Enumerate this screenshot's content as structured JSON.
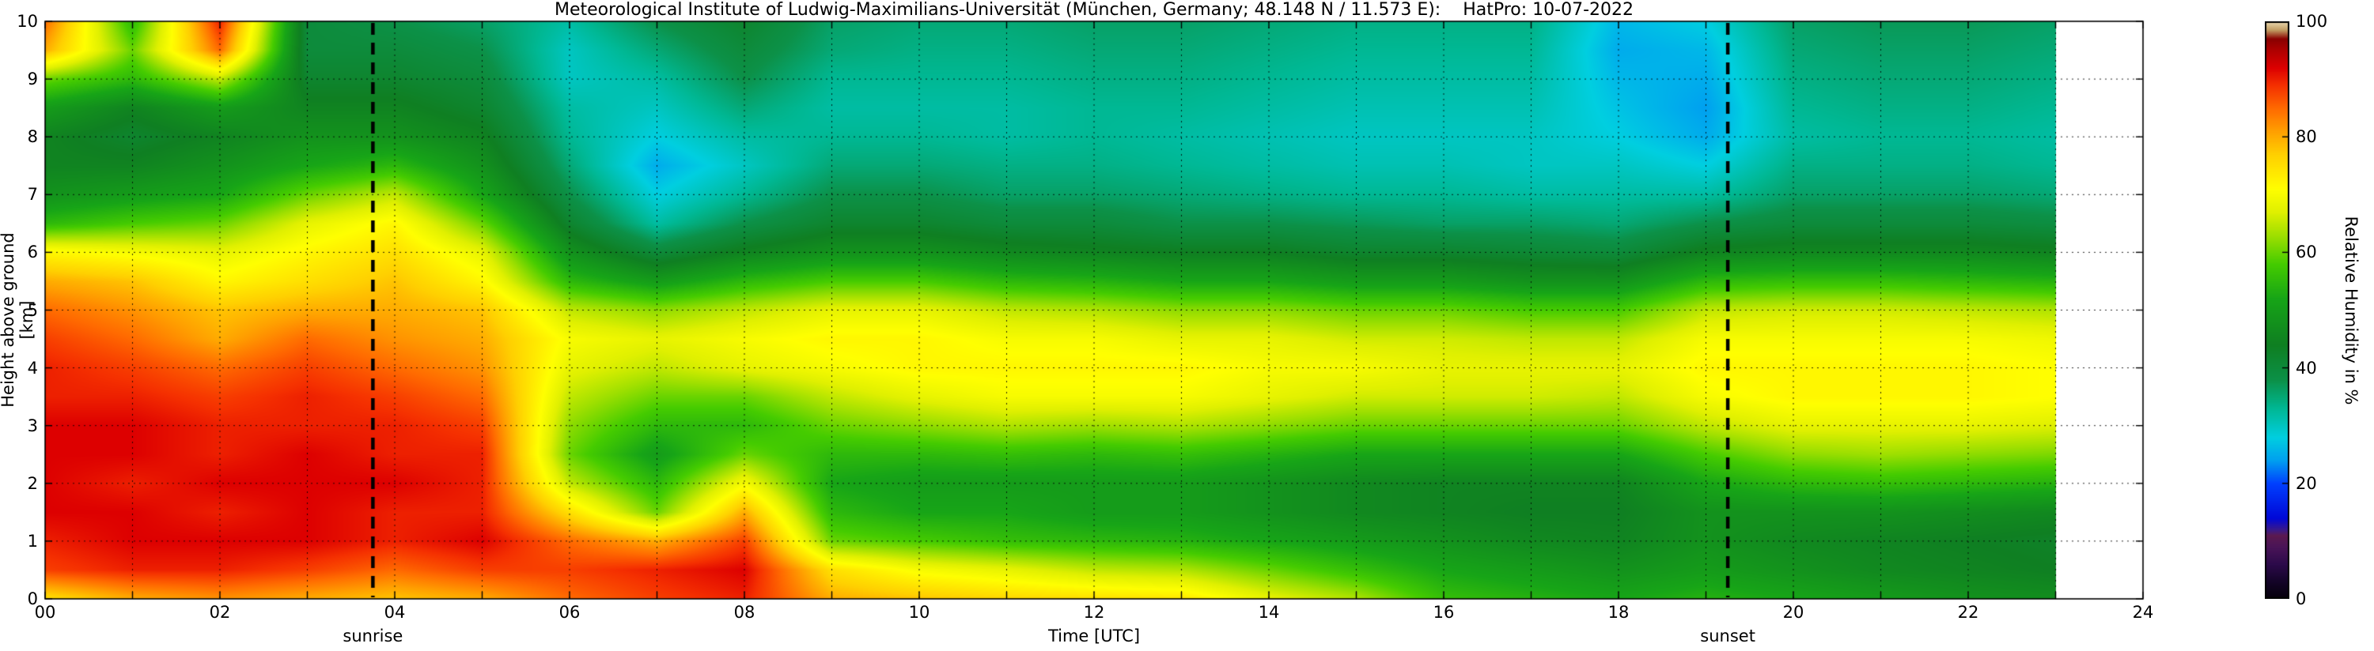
{
  "chart_data": {
    "type": "heatmap",
    "title": "Meteorological Institute of Ludwig-Maximilians-Universität (München, Germany; 48.148 N / 11.573 E):    HatPro: 10-07-2022",
    "xlabel": "Time [UTC]",
    "ylabel": "Height above ground [km]",
    "colorbar_label": "Relative Humidity in %",
    "xlim": [
      0,
      24
    ],
    "ylim": [
      0,
      10
    ],
    "value_lim": [
      0,
      100
    ],
    "grid": "dotted black, hourly vertical and 1-km horizontal",
    "legend_position": "colorbar-right",
    "data_end_time": 23,
    "x_ticks": [
      {
        "t": 0,
        "label": "00"
      },
      {
        "t": 2,
        "label": "02"
      },
      {
        "t": 4,
        "label": "04"
      },
      {
        "t": 6,
        "label": "06"
      },
      {
        "t": 8,
        "label": "08"
      },
      {
        "t": 10,
        "label": "10"
      },
      {
        "t": 12,
        "label": "12"
      },
      {
        "t": 14,
        "label": "14"
      },
      {
        "t": 16,
        "label": "16"
      },
      {
        "t": 18,
        "label": "18"
      },
      {
        "t": 20,
        "label": "20"
      },
      {
        "t": 22,
        "label": "22"
      },
      {
        "t": 24,
        "label": "24"
      }
    ],
    "y_ticks": [
      {
        "v": 0,
        "label": "0"
      },
      {
        "v": 1,
        "label": "1"
      },
      {
        "v": 2,
        "label": "2"
      },
      {
        "v": 3,
        "label": "3"
      },
      {
        "v": 4,
        "label": "4"
      },
      {
        "v": 5,
        "label": "5"
      },
      {
        "v": 6,
        "label": "6"
      },
      {
        "v": 7,
        "label": "7"
      },
      {
        "v": 8,
        "label": "8"
      },
      {
        "v": 9,
        "label": "9"
      },
      {
        "v": 10,
        "label": "10"
      }
    ],
    "colorbar_ticks": [
      {
        "v": 0,
        "label": "0"
      },
      {
        "v": 20,
        "label": "20"
      },
      {
        "v": 40,
        "label": "40"
      },
      {
        "v": 60,
        "label": "60"
      },
      {
        "v": 80,
        "label": "80"
      },
      {
        "v": 100,
        "label": "100"
      }
    ],
    "annotations": [
      {
        "label": "sunrise",
        "time": 3.75
      },
      {
        "label": "sunset",
        "time": 19.25
      }
    ],
    "colormap": [
      {
        "v": 0,
        "c": "#05000a"
      },
      {
        "v": 3,
        "c": "#140428"
      },
      {
        "v": 6,
        "c": "#2c0a4a"
      },
      {
        "v": 9,
        "c": "#4a1458"
      },
      {
        "v": 11,
        "c": "#5c1a50"
      },
      {
        "v": 12,
        "c": "#3a1a8a"
      },
      {
        "v": 14,
        "c": "#0008d8"
      },
      {
        "v": 20,
        "c": "#0040ff"
      },
      {
        "v": 24,
        "c": "#00a0f0"
      },
      {
        "v": 28,
        "c": "#00cfe0"
      },
      {
        "v": 33,
        "c": "#00b894"
      },
      {
        "v": 38,
        "c": "#0c9148"
      },
      {
        "v": 44,
        "c": "#0f7f22"
      },
      {
        "v": 52,
        "c": "#17a517"
      },
      {
        "v": 58,
        "c": "#45cc00"
      },
      {
        "v": 63,
        "c": "#a0e000"
      },
      {
        "v": 67,
        "c": "#e0f000"
      },
      {
        "v": 71,
        "c": "#ffff00"
      },
      {
        "v": 77,
        "c": "#ffd000"
      },
      {
        "v": 81,
        "c": "#ffa000"
      },
      {
        "v": 85,
        "c": "#ff6a00"
      },
      {
        "v": 89,
        "c": "#f53000"
      },
      {
        "v": 92,
        "c": "#dd0000"
      },
      {
        "v": 95,
        "c": "#b00000"
      },
      {
        "v": 97,
        "c": "#8a0000"
      },
      {
        "v": 98.5,
        "c": "#c09a60"
      },
      {
        "v": 100,
        "c": "#ead9b0"
      }
    ],
    "times": [
      0,
      1,
      2,
      3,
      4,
      5,
      6,
      7,
      8,
      9,
      10,
      11,
      12,
      13,
      14,
      15,
      16,
      17,
      18,
      19,
      20,
      21,
      22,
      23
    ],
    "heights": [
      0,
      0.5,
      1,
      1.5,
      2,
      2.5,
      3,
      3.5,
      4,
      4.5,
      5,
      5.5,
      6,
      6.5,
      7,
      7.5,
      8,
      8.5,
      9,
      9.5,
      10
    ],
    "rh": [
      [
        75,
        88,
        90,
        92,
        92,
        92,
        92,
        90,
        90,
        88,
        85,
        80,
        72,
        55,
        48,
        45,
        45,
        50,
        60,
        80,
        85
      ],
      [
        80,
        90,
        92,
        92,
        90,
        92,
        92,
        90,
        88,
        85,
        82,
        78,
        70,
        58,
        50,
        45,
        42,
        45,
        55,
        60,
        55
      ],
      [
        82,
        90,
        92,
        90,
        92,
        90,
        90,
        88,
        85,
        80,
        78,
        72,
        68,
        60,
        52,
        48,
        45,
        50,
        65,
        85,
        90
      ],
      [
        80,
        88,
        92,
        92,
        92,
        92,
        90,
        90,
        88,
        85,
        80,
        75,
        72,
        68,
        60,
        52,
        48,
        45,
        42,
        40,
        40
      ],
      [
        78,
        85,
        90,
        90,
        92,
        90,
        90,
        88,
        85,
        82,
        80,
        78,
        75,
        72,
        65,
        55,
        48,
        45,
        42,
        40,
        38
      ],
      [
        80,
        88,
        92,
        90,
        90,
        90,
        88,
        85,
        82,
        80,
        78,
        72,
        68,
        60,
        52,
        48,
        45,
        42,
        40,
        38,
        36
      ],
      [
        85,
        88,
        85,
        75,
        65,
        60,
        62,
        65,
        68,
        70,
        65,
        55,
        48,
        42,
        38,
        35,
        33,
        32,
        30,
        30,
        32
      ],
      [
        88,
        90,
        80,
        60,
        55,
        50,
        55,
        60,
        65,
        68,
        62,
        50,
        40,
        32,
        28,
        25,
        28,
        30,
        32,
        35,
        38
      ],
      [
        90,
        92,
        88,
        80,
        70,
        60,
        55,
        60,
        68,
        70,
        65,
        55,
        45,
        38,
        33,
        30,
        32,
        35,
        38,
        40,
        42
      ],
      [
        80,
        75,
        60,
        55,
        52,
        55,
        60,
        65,
        70,
        72,
        68,
        58,
        48,
        42,
        38,
        35,
        33,
        32,
        33,
        35,
        36
      ],
      [
        78,
        70,
        58,
        52,
        50,
        55,
        62,
        68,
        72,
        72,
        68,
        58,
        48,
        42,
        38,
        35,
        33,
        32,
        33,
        34,
        35
      ],
      [
        76,
        68,
        56,
        52,
        50,
        56,
        64,
        70,
        72,
        70,
        65,
        55,
        46,
        40,
        36,
        34,
        32,
        32,
        33,
        34,
        35
      ],
      [
        75,
        65,
        55,
        50,
        50,
        55,
        63,
        70,
        72,
        70,
        64,
        54,
        45,
        40,
        36,
        34,
        33,
        33,
        34,
        35,
        36
      ],
      [
        74,
        64,
        54,
        50,
        50,
        56,
        64,
        70,
        72,
        68,
        62,
        52,
        44,
        38,
        35,
        33,
        32,
        33,
        34,
        35,
        36
      ],
      [
        68,
        60,
        52,
        48,
        48,
        54,
        62,
        68,
        70,
        68,
        62,
        52,
        44,
        38,
        34,
        32,
        31,
        32,
        33,
        34,
        35
      ],
      [
        64,
        56,
        50,
        46,
        46,
        52,
        60,
        66,
        70,
        66,
        60,
        50,
        42,
        37,
        33,
        31,
        30,
        31,
        32,
        33,
        34
      ],
      [
        56,
        52,
        48,
        45,
        45,
        52,
        60,
        66,
        68,
        66,
        60,
        50,
        42,
        36,
        33,
        31,
        30,
        31,
        32,
        33,
        34
      ],
      [
        54,
        50,
        46,
        44,
        45,
        52,
        60,
        66,
        68,
        65,
        58,
        48,
        41,
        36,
        32,
        30,
        30,
        31,
        32,
        33,
        34
      ],
      [
        52,
        48,
        45,
        44,
        45,
        52,
        60,
        65,
        68,
        65,
        58,
        48,
        40,
        35,
        32,
        30,
        28,
        27,
        26,
        25,
        26
      ],
      [
        54,
        50,
        48,
        48,
        52,
        58,
        65,
        70,
        72,
        70,
        65,
        55,
        45,
        38,
        32,
        28,
        25,
        24,
        25,
        26,
        28
      ],
      [
        52,
        48,
        46,
        48,
        55,
        62,
        68,
        72,
        72,
        70,
        66,
        56,
        46,
        40,
        36,
        34,
        32,
        33,
        34,
        35,
        36
      ],
      [
        50,
        46,
        45,
        48,
        56,
        63,
        68,
        72,
        72,
        70,
        66,
        56,
        46,
        40,
        36,
        34,
        33,
        34,
        35,
        36,
        37
      ],
      [
        48,
        45,
        44,
        47,
        55,
        62,
        68,
        72,
        72,
        70,
        65,
        55,
        46,
        40,
        36,
        34,
        33,
        34,
        35,
        36,
        37
      ],
      [
        47,
        44,
        43,
        46,
        54,
        61,
        67,
        71,
        71,
        69,
        64,
        54,
        45,
        39,
        35,
        33,
        32,
        33,
        34,
        35,
        36
      ]
    ]
  }
}
